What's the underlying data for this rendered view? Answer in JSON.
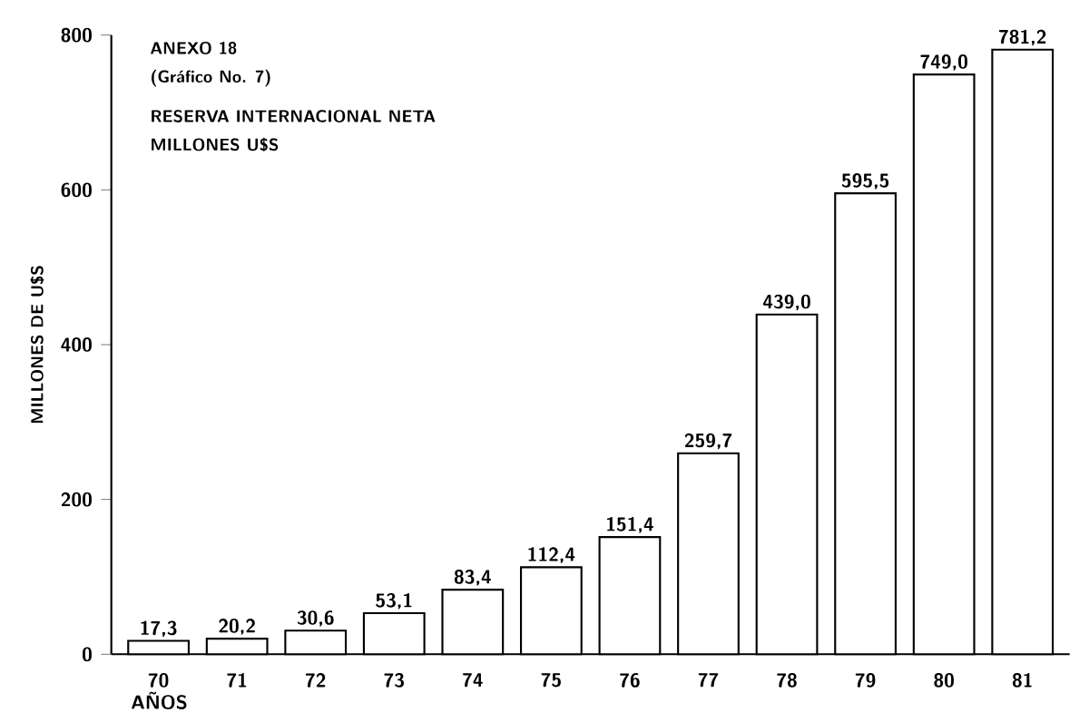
{
  "chart_data": {
    "type": "bar",
    "title": "RESERVA INTERNACIONAL NETA",
    "subtitle": "MILLONES U$S",
    "annotations": [
      "ANEXO 18",
      "(Gráfico No. 7)"
    ],
    "xlabel": "AÑOS",
    "ylabel": "MILLONES DE U$S",
    "categories": [
      "70",
      "71",
      "72",
      "73",
      "74",
      "75",
      "76",
      "77",
      "78",
      "79",
      "80",
      "81"
    ],
    "values": [
      17.3,
      20.2,
      30.6,
      53.1,
      83.4,
      112.4,
      151.4,
      259.7,
      439.0,
      595.5,
      749.0,
      781.2
    ],
    "value_labels": [
      "17,3",
      "20,2",
      "30,6",
      "53,1",
      "83,4",
      "112,4",
      "151,4",
      "259,7",
      "439,0",
      "595,5",
      "749,0",
      "781,2"
    ],
    "color": "#ffffff",
    "ylim": [
      0,
      800
    ],
    "yticks": [
      0,
      200,
      400,
      600,
      800
    ]
  }
}
